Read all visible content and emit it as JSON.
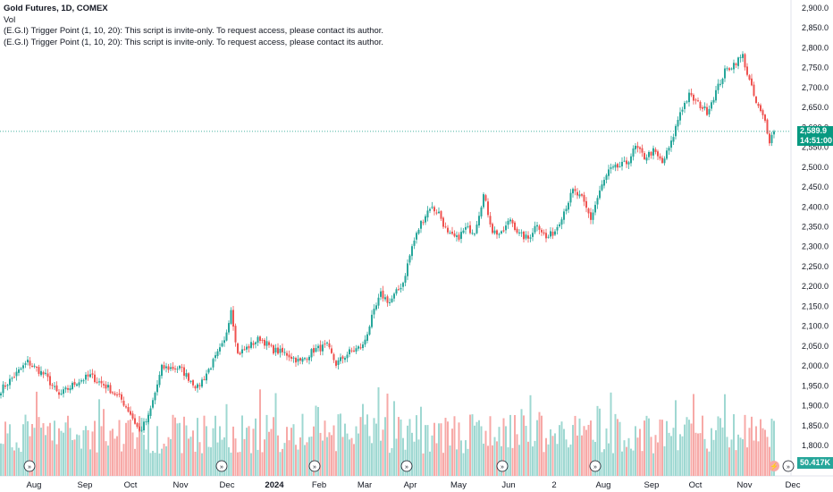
{
  "header": {
    "title": "Gold Futures, 1D, COMEX",
    "vol_label": "Vol",
    "indicator_lines": [
      "(E.G.I) Trigger Point  (1, 10, 20): This script is invite-only. To request access, please contact its author.",
      "(E.G.I) Trigger Point  (1, 10, 20): This script is invite-only. To request access, please contact its author."
    ]
  },
  "price_badge": {
    "price": "2,589.9",
    "countdown": "14:51:00"
  },
  "volume_badge": {
    "value": "50.417K"
  },
  "colors": {
    "up": "#26a69a",
    "down": "#ef5350",
    "vol_up": "#9fd8d2",
    "vol_down": "#f7a9a7",
    "last_line": "#089981"
  },
  "chart_data": {
    "type": "candlestick",
    "ylim": [
      1780,
      2920
    ],
    "y_ticks": [
      "2,900.0",
      "2,850.0",
      "2,800.0",
      "2,750.0",
      "2,700.0",
      "2,650.0",
      "2,600.0",
      "2,550.0",
      "2,500.0",
      "2,450.0",
      "2,400.0",
      "2,350.0",
      "2,300.0",
      "2,250.0",
      "2,200.0",
      "2,150.0",
      "2,100.0",
      "2,050.0",
      "2,000.0",
      "1,950.0",
      "1,900.0",
      "1,850.0",
      "1,800.0"
    ],
    "x_labels": [
      "Aug",
      "Sep",
      "Oct",
      "Nov",
      "Dec",
      "2024",
      "Feb",
      "Mar",
      "Apr",
      "May",
      "Jun",
      "2",
      "Aug",
      "Sep",
      "Oct",
      "Nov",
      "Dec"
    ],
    "last_price": 2589.9,
    "price_path": [
      {
        "bar": 0,
        "price": 1940
      },
      {
        "bar": 6,
        "price": 1975
      },
      {
        "bar": 12,
        "price": 2010
      },
      {
        "bar": 20,
        "price": 1975
      },
      {
        "bar": 26,
        "price": 1925
      },
      {
        "bar": 34,
        "price": 1960
      },
      {
        "bar": 40,
        "price": 1975
      },
      {
        "bar": 48,
        "price": 1945
      },
      {
        "bar": 54,
        "price": 1915
      },
      {
        "bar": 58,
        "price": 1880
      },
      {
        "bar": 62,
        "price": 1835
      },
      {
        "bar": 66,
        "price": 1870
      },
      {
        "bar": 72,
        "price": 1995
      },
      {
        "bar": 80,
        "price": 1995
      },
      {
        "bar": 88,
        "price": 1945
      },
      {
        "bar": 94,
        "price": 2000
      },
      {
        "bar": 100,
        "price": 2060
      },
      {
        "bar": 103,
        "price": 2145
      },
      {
        "bar": 106,
        "price": 2030
      },
      {
        "bar": 110,
        "price": 2045
      },
      {
        "bar": 116,
        "price": 2070
      },
      {
        "bar": 122,
        "price": 2040
      },
      {
        "bar": 128,
        "price": 2030
      },
      {
        "bar": 134,
        "price": 2010
      },
      {
        "bar": 140,
        "price": 2040
      },
      {
        "bar": 146,
        "price": 2050
      },
      {
        "bar": 150,
        "price": 2005
      },
      {
        "bar": 156,
        "price": 2035
      },
      {
        "bar": 162,
        "price": 2050
      },
      {
        "bar": 166,
        "price": 2120
      },
      {
        "bar": 170,
        "price": 2180
      },
      {
        "bar": 174,
        "price": 2160
      },
      {
        "bar": 180,
        "price": 2210
      },
      {
        "bar": 184,
        "price": 2300
      },
      {
        "bar": 188,
        "price": 2360
      },
      {
        "bar": 192,
        "price": 2400
      },
      {
        "bar": 196,
        "price": 2385
      },
      {
        "bar": 200,
        "price": 2330
      },
      {
        "bar": 204,
        "price": 2320
      },
      {
        "bar": 208,
        "price": 2345
      },
      {
        "bar": 212,
        "price": 2340
      },
      {
        "bar": 216,
        "price": 2430
      },
      {
        "bar": 220,
        "price": 2340
      },
      {
        "bar": 224,
        "price": 2330
      },
      {
        "bar": 228,
        "price": 2370
      },
      {
        "bar": 232,
        "price": 2330
      },
      {
        "bar": 236,
        "price": 2320
      },
      {
        "bar": 240,
        "price": 2360
      },
      {
        "bar": 244,
        "price": 2320
      },
      {
        "bar": 248,
        "price": 2340
      },
      {
        "bar": 252,
        "price": 2390
      },
      {
        "bar": 256,
        "price": 2440
      },
      {
        "bar": 260,
        "price": 2420
      },
      {
        "bar": 264,
        "price": 2370
      },
      {
        "bar": 268,
        "price": 2440
      },
      {
        "bar": 272,
        "price": 2490
      },
      {
        "bar": 276,
        "price": 2500
      },
      {
        "bar": 280,
        "price": 2510
      },
      {
        "bar": 284,
        "price": 2550
      },
      {
        "bar": 288,
        "price": 2525
      },
      {
        "bar": 292,
        "price": 2540
      },
      {
        "bar": 296,
        "price": 2510
      },
      {
        "bar": 300,
        "price": 2560
      },
      {
        "bar": 304,
        "price": 2640
      },
      {
        "bar": 308,
        "price": 2680
      },
      {
        "bar": 312,
        "price": 2660
      },
      {
        "bar": 316,
        "price": 2640
      },
      {
        "bar": 320,
        "price": 2690
      },
      {
        "bar": 324,
        "price": 2740
      },
      {
        "bar": 328,
        "price": 2760
      },
      {
        "bar": 332,
        "price": 2780
      },
      {
        "bar": 334,
        "price": 2735
      },
      {
        "bar": 338,
        "price": 2660
      },
      {
        "bar": 342,
        "price": 2615
      },
      {
        "bar": 344,
        "price": 2568
      },
      {
        "bar": 346,
        "price": 2589.9
      }
    ]
  }
}
